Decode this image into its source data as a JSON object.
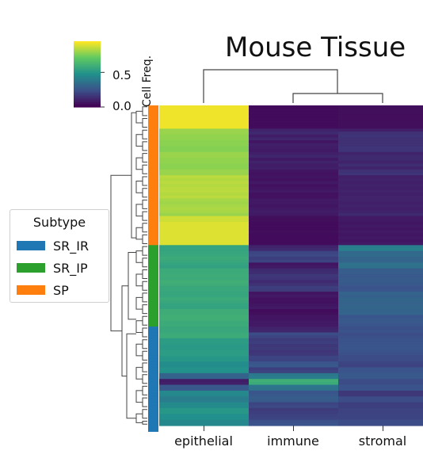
{
  "title": "Mouse Tissue",
  "colorbar": {
    "label": "Cell Freq.",
    "ticks": [
      "0.0",
      "0.5"
    ],
    "tick_values": [
      0.0,
      0.5
    ],
    "range": [
      0.0,
      0.95
    ],
    "colormap": "viridis"
  },
  "legend": {
    "title": "Subtype",
    "items": [
      {
        "label": "SR_IR",
        "color": "#1f77b4"
      },
      {
        "label": "SR_IP",
        "color": "#2ca02c"
      },
      {
        "label": "SP",
        "color": "#ff7f0e"
      }
    ]
  },
  "chart_data": {
    "type": "heatmap",
    "title": "Mouse Tissue",
    "columns": [
      "epithelial",
      "immune",
      "stromal"
    ],
    "colorbar_label": "Cell Freq.",
    "vmin": 0.0,
    "vmax": 0.95,
    "row_subtypes": [
      "SP",
      "SP",
      "SP",
      "SP",
      "SP",
      "SP",
      "SP",
      "SP",
      "SP",
      "SP",
      "SP",
      "SP",
      "SP",
      "SP",
      "SP",
      "SP",
      "SP",
      "SP",
      "SP",
      "SP",
      "SP",
      "SP",
      "SP",
      "SP",
      "SP",
      "SP",
      "SP",
      "SP",
      "SP",
      "SP",
      "SP",
      "SP",
      "SP",
      "SP",
      "SP",
      "SP",
      "SP",
      "SP",
      "SP",
      "SP",
      "SP",
      "SP",
      "SP",
      "SP",
      "SP",
      "SP",
      "SP",
      "SP",
      "SR_IP",
      "SR_IP",
      "SR_IP",
      "SR_IP",
      "SR_IP",
      "SR_IP",
      "SR_IP",
      "SR_IP",
      "SR_IP",
      "SR_IP",
      "SR_IP",
      "SR_IP",
      "SR_IP",
      "SR_IP",
      "SR_IP",
      "SR_IP",
      "SR_IP",
      "SR_IP",
      "SR_IP",
      "SR_IP",
      "SR_IP",
      "SR_IP",
      "SR_IP",
      "SR_IP",
      "SR_IP",
      "SR_IP",
      "SR_IP",
      "SR_IP",
      "SR_IR",
      "SR_IR",
      "SR_IR",
      "SR_IR",
      "SR_IR",
      "SR_IR",
      "SR_IR",
      "SR_IR",
      "SR_IR",
      "SR_IR",
      "SR_IR",
      "SR_IR",
      "SR_IR",
      "SR_IR",
      "SR_IR",
      "SR_IR",
      "SR_IR",
      "SR_IR",
      "SR_IR",
      "SR_IR",
      "SR_IR",
      "SR_IR",
      "SR_IR",
      "SR_IR",
      "SR_IR",
      "SR_IR",
      "SR_IR",
      "SR_IR",
      "SR_IR",
      "SR_IR",
      "SR_IR",
      "SR_IR",
      "SR_IR",
      "SR_IR",
      "SR_IR",
      "SR_IR"
    ],
    "values": [
      [
        0.93,
        0.03,
        0.04
      ],
      [
        0.93,
        0.03,
        0.04
      ],
      [
        0.93,
        0.03,
        0.04
      ],
      [
        0.93,
        0.03,
        0.04
      ],
      [
        0.93,
        0.03,
        0.04
      ],
      [
        0.93,
        0.03,
        0.04
      ],
      [
        0.93,
        0.03,
        0.04
      ],
      [
        0.93,
        0.03,
        0.04
      ],
      [
        0.8,
        0.1,
        0.09
      ],
      [
        0.8,
        0.12,
        0.14
      ],
      [
        0.79,
        0.08,
        0.15
      ],
      [
        0.79,
        0.11,
        0.14
      ],
      [
        0.78,
        0.06,
        0.14
      ],
      [
        0.78,
        0.09,
        0.14
      ],
      [
        0.77,
        0.08,
        0.15
      ],
      [
        0.77,
        0.07,
        0.15
      ],
      [
        0.8,
        0.09,
        0.1
      ],
      [
        0.8,
        0.11,
        0.12
      ],
      [
        0.79,
        0.07,
        0.12
      ],
      [
        0.79,
        0.1,
        0.1
      ],
      [
        0.78,
        0.08,
        0.13
      ],
      [
        0.78,
        0.09,
        0.1
      ],
      [
        0.8,
        0.06,
        0.14
      ],
      [
        0.8,
        0.05,
        0.15
      ],
      [
        0.85,
        0.06,
        0.09
      ],
      [
        0.84,
        0.05,
        0.1
      ],
      [
        0.85,
        0.07,
        0.09
      ],
      [
        0.84,
        0.05,
        0.1
      ],
      [
        0.85,
        0.06,
        0.09
      ],
      [
        0.85,
        0.07,
        0.1
      ],
      [
        0.84,
        0.05,
        0.09
      ],
      [
        0.85,
        0.05,
        0.1
      ],
      [
        0.82,
        0.07,
        0.1
      ],
      [
        0.81,
        0.07,
        0.09
      ],
      [
        0.82,
        0.06,
        0.1
      ],
      [
        0.83,
        0.07,
        0.09
      ],
      [
        0.82,
        0.08,
        0.1
      ],
      [
        0.8,
        0.07,
        0.12
      ],
      [
        0.88,
        0.04,
        0.07
      ],
      [
        0.88,
        0.04,
        0.07
      ],
      [
        0.9,
        0.03,
        0.06
      ],
      [
        0.9,
        0.03,
        0.07
      ],
      [
        0.9,
        0.03,
        0.06
      ],
      [
        0.9,
        0.04,
        0.07
      ],
      [
        0.9,
        0.03,
        0.06
      ],
      [
        0.9,
        0.03,
        0.07
      ],
      [
        0.9,
        0.03,
        0.06
      ],
      [
        0.9,
        0.03,
        0.07
      ],
      [
        0.55,
        0.1,
        0.4
      ],
      [
        0.55,
        0.12,
        0.41
      ],
      [
        0.56,
        0.2,
        0.32
      ],
      [
        0.57,
        0.21,
        0.33
      ],
      [
        0.58,
        0.18,
        0.31
      ],
      [
        0.57,
        0.19,
        0.3
      ],
      [
        0.55,
        0.06,
        0.36
      ],
      [
        0.54,
        0.07,
        0.35
      ],
      [
        0.58,
        0.12,
        0.28
      ],
      [
        0.58,
        0.13,
        0.28
      ],
      [
        0.59,
        0.16,
        0.26
      ],
      [
        0.58,
        0.15,
        0.27
      ],
      [
        0.6,
        0.12,
        0.27
      ],
      [
        0.59,
        0.14,
        0.26
      ],
      [
        0.57,
        0.18,
        0.24
      ],
      [
        0.57,
        0.17,
        0.25
      ],
      [
        0.56,
        0.06,
        0.3
      ],
      [
        0.56,
        0.07,
        0.29
      ],
      [
        0.58,
        0.05,
        0.31
      ],
      [
        0.57,
        0.05,
        0.3
      ],
      [
        0.55,
        0.06,
        0.3
      ],
      [
        0.55,
        0.07,
        0.31
      ],
      [
        0.59,
        0.03,
        0.3
      ],
      [
        0.59,
        0.04,
        0.3
      ],
      [
        0.6,
        0.06,
        0.25
      ],
      [
        0.6,
        0.06,
        0.26
      ],
      [
        0.58,
        0.07,
        0.26
      ],
      [
        0.58,
        0.07,
        0.25
      ],
      [
        0.57,
        0.1,
        0.23
      ],
      [
        0.57,
        0.11,
        0.24
      ],
      [
        0.58,
        0.22,
        0.22
      ],
      [
        0.58,
        0.2,
        0.23
      ],
      [
        0.52,
        0.17,
        0.24
      ],
      [
        0.52,
        0.18,
        0.24
      ],
      [
        0.51,
        0.16,
        0.25
      ],
      [
        0.51,
        0.17,
        0.25
      ],
      [
        0.52,
        0.15,
        0.24
      ],
      [
        0.52,
        0.16,
        0.23
      ],
      [
        0.5,
        0.2,
        0.22
      ],
      [
        0.5,
        0.19,
        0.22
      ],
      [
        0.46,
        0.25,
        0.2
      ],
      [
        0.46,
        0.26,
        0.19
      ],
      [
        0.48,
        0.18,
        0.25
      ],
      [
        0.48,
        0.19,
        0.25
      ],
      [
        0.3,
        0.38,
        0.26
      ],
      [
        0.3,
        0.4,
        0.26
      ],
      [
        0.08,
        0.6,
        0.22
      ],
      [
        0.09,
        0.58,
        0.22
      ],
      [
        0.26,
        0.37,
        0.24
      ],
      [
        0.26,
        0.36,
        0.24
      ],
      [
        0.44,
        0.25,
        0.16
      ],
      [
        0.44,
        0.26,
        0.16
      ],
      [
        0.4,
        0.28,
        0.22
      ],
      [
        0.4,
        0.27,
        0.22
      ],
      [
        0.45,
        0.2,
        0.18
      ],
      [
        0.45,
        0.21,
        0.18
      ],
      [
        0.5,
        0.17,
        0.19
      ],
      [
        0.5,
        0.18,
        0.19
      ],
      [
        0.47,
        0.19,
        0.2
      ],
      [
        0.47,
        0.2,
        0.2
      ],
      [
        0.44,
        0.23,
        0.22
      ],
      [
        0.44,
        0.24,
        0.22
      ]
    ]
  }
}
